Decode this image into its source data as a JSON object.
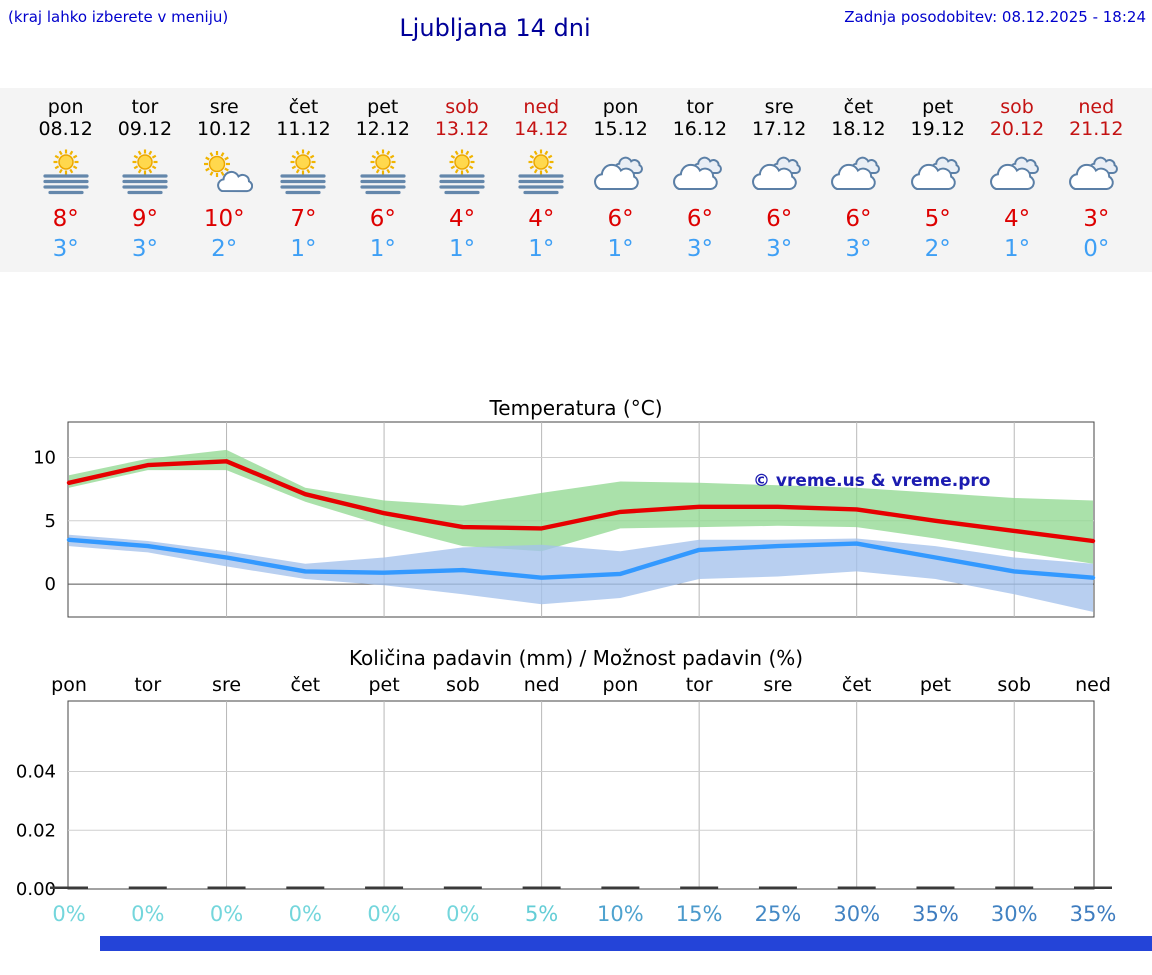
{
  "header": {
    "hint": "(kraj lahko izberete v meniju)",
    "title": "Ljubljana 14 dni",
    "last_update": "Zadnja posodobitev: 08.12.2025 - 18:24"
  },
  "colors": {
    "link_blue": "#0000cc",
    "title_blue": "#000099",
    "high_temp_red": "#dd0000",
    "low_temp_blue": "#3e9ff5",
    "weekend_red": "#c41212",
    "strip_background": "#f4f4f4",
    "footer_bar_blue": "#2444d8"
  },
  "forecast": {
    "days": [
      {
        "name": "pon",
        "date": "08.12",
        "weekend": false,
        "icon": "sun-fog",
        "high": "8°",
        "low": "3°"
      },
      {
        "name": "tor",
        "date": "09.12",
        "weekend": false,
        "icon": "sun-fog",
        "high": "9°",
        "low": "3°"
      },
      {
        "name": "sre",
        "date": "10.12",
        "weekend": false,
        "icon": "sun-cloud",
        "high": "10°",
        "low": "2°"
      },
      {
        "name": "čet",
        "date": "11.12",
        "weekend": false,
        "icon": "sun-fog",
        "high": "7°",
        "low": "1°"
      },
      {
        "name": "pet",
        "date": "12.12",
        "weekend": false,
        "icon": "sun-fog",
        "high": "6°",
        "low": "1°"
      },
      {
        "name": "sob",
        "date": "13.12",
        "weekend": true,
        "icon": "sun-fog",
        "high": "4°",
        "low": "1°"
      },
      {
        "name": "ned",
        "date": "14.12",
        "weekend": true,
        "icon": "sun-fog",
        "high": "4°",
        "low": "1°"
      },
      {
        "name": "pon",
        "date": "15.12",
        "weekend": false,
        "icon": "cloudy",
        "high": "6°",
        "low": "1°"
      },
      {
        "name": "tor",
        "date": "16.12",
        "weekend": false,
        "icon": "cloudy",
        "high": "6°",
        "low": "3°"
      },
      {
        "name": "sre",
        "date": "17.12",
        "weekend": false,
        "icon": "cloudy",
        "high": "6°",
        "low": "3°"
      },
      {
        "name": "čet",
        "date": "18.12",
        "weekend": false,
        "icon": "cloudy",
        "high": "6°",
        "low": "3°"
      },
      {
        "name": "pet",
        "date": "19.12",
        "weekend": false,
        "icon": "cloudy",
        "high": "5°",
        "low": "2°"
      },
      {
        "name": "sob",
        "date": "20.12",
        "weekend": true,
        "icon": "cloudy",
        "high": "4°",
        "low": "1°"
      },
      {
        "name": "ned",
        "date": "21.12",
        "weekend": true,
        "icon": "cloudy",
        "high": "3°",
        "low": "0°"
      }
    ]
  },
  "chart_data": [
    {
      "type": "line",
      "title": "Temperatura (°C)",
      "categories": [
        "pon 08.12",
        "tor 09.12",
        "sre 10.12",
        "čet 11.12",
        "pet 12.12",
        "sob 13.12",
        "ned 14.12",
        "pon 15.12",
        "tor 16.12",
        "sre 17.12",
        "čet 18.12",
        "pet 19.12",
        "sob 20.12",
        "ned 21.12"
      ],
      "ylim": [
        -2.6,
        12.8
      ],
      "yticks": [
        0,
        5,
        10
      ],
      "grid": "vertical line every 2 days, horizontal at yticks, dark zero line",
      "legend_position": "none",
      "watermark": "© vreme.us & vreme.pro",
      "series": [
        {
          "name": "max temperature",
          "color": "#e60000",
          "values": [
            8.0,
            9.4,
            9.7,
            7.1,
            5.6,
            4.5,
            4.4,
            5.7,
            6.1,
            6.1,
            5.9,
            5.0,
            4.2,
            3.4
          ],
          "band": {
            "color": "#92d892",
            "upper": [
              8.6,
              9.9,
              10.6,
              7.6,
              6.6,
              6.2,
              7.2,
              8.1,
              8.0,
              7.8,
              7.6,
              7.2,
              6.8,
              6.6
            ],
            "lower": [
              7.6,
              9.0,
              9.0,
              6.5,
              4.6,
              3.0,
              2.6,
              4.4,
              4.5,
              4.6,
              4.5,
              3.6,
              2.6,
              1.6
            ]
          }
        },
        {
          "name": "min temperature",
          "color": "#3399ff",
          "values": [
            3.5,
            3.0,
            2.1,
            1.0,
            0.9,
            1.1,
            0.5,
            0.8,
            2.7,
            3.0,
            3.2,
            2.1,
            1.0,
            0.5
          ],
          "band": {
            "color": "#a4c2ec",
            "upper": [
              3.9,
              3.4,
              2.6,
              1.6,
              2.1,
              2.9,
              3.1,
              2.6,
              3.5,
              3.5,
              3.6,
              3.0,
              2.1,
              1.6
            ],
            "lower": [
              3.0,
              2.5,
              1.4,
              0.4,
              -0.1,
              -0.8,
              -1.6,
              -1.1,
              0.4,
              0.6,
              1.0,
              0.4,
              -0.8,
              -2.2
            ]
          }
        }
      ]
    },
    {
      "type": "bar",
      "title": "Količina padavin (mm) / Možnost padavin (%)",
      "categories": [
        "pon",
        "tor",
        "sre",
        "čet",
        "pet",
        "sob",
        "ned",
        "pon",
        "tor",
        "sre",
        "čet",
        "pet",
        "sob",
        "ned"
      ],
      "values": [
        0,
        0,
        0,
        0,
        0,
        0,
        0,
        0,
        0,
        0,
        0,
        0,
        0,
        0
      ],
      "ylim": [
        0,
        0.064
      ],
      "yticks": [
        "0.00",
        "0.02",
        "0.04"
      ],
      "ytick_values": [
        0,
        0.02,
        0.04
      ],
      "probability": [
        {
          "label": "0%",
          "color": "#74d6dc"
        },
        {
          "label": "0%",
          "color": "#74d6dc"
        },
        {
          "label": "0%",
          "color": "#74d6dc"
        },
        {
          "label": "0%",
          "color": "#74d6dc"
        },
        {
          "label": "0%",
          "color": "#74d6dc"
        },
        {
          "label": "0%",
          "color": "#74d6dc"
        },
        {
          "label": "5%",
          "color": "#63cdd6"
        },
        {
          "label": "10%",
          "color": "#4fa3cf"
        },
        {
          "label": "15%",
          "color": "#4a99cb"
        },
        {
          "label": "25%",
          "color": "#4489c5"
        },
        {
          "label": "30%",
          "color": "#4182c2"
        },
        {
          "label": "35%",
          "color": "#3e7cbf"
        },
        {
          "label": "30%",
          "color": "#4182c2"
        },
        {
          "label": "35%",
          "color": "#3e7cbf"
        }
      ]
    }
  ]
}
